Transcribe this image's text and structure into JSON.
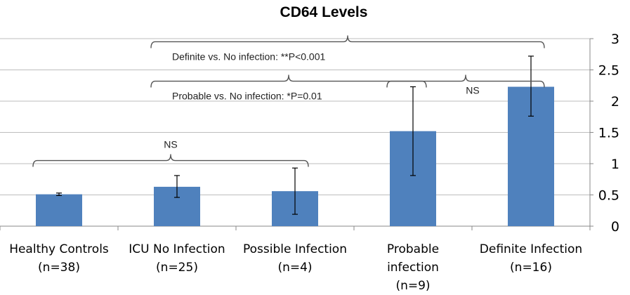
{
  "chart_data": {
    "type": "bar",
    "title": "CD64 Levels",
    "xlabel": "",
    "ylabel": "",
    "ylim": [
      0,
      3
    ],
    "yticks": [
      "0",
      "0.5",
      "1",
      "1.5",
      "2",
      "2.5",
      "3"
    ],
    "y_axis_side": "right",
    "grid": true,
    "categories": [
      [
        "Healthy Controls",
        "(n=38)"
      ],
      [
        "ICU No Infection",
        "(n=25)"
      ],
      [
        "Possible Infection",
        "(n=4)"
      ],
      [
        "Probable",
        "infection",
        "(n=9)"
      ],
      [
        "Definite Infection",
        "(n=16)"
      ]
    ],
    "values": [
      0.51,
      0.63,
      0.56,
      1.52,
      2.23
    ],
    "error": [
      [
        0.49,
        0.53
      ],
      [
        0.46,
        0.81
      ],
      [
        0.19,
        0.93
      ],
      [
        0.81,
        2.23
      ],
      [
        1.76,
        2.72
      ]
    ],
    "color": "#4f81bd",
    "annotations": [
      {
        "text": "Definite vs. No infection: **P<0.001",
        "from": 1,
        "to": 4,
        "level": 2.95
      },
      {
        "text": "Probable vs. No infection: *P=0.01",
        "from": 1,
        "to": 3,
        "level": 2.32
      },
      {
        "text": "NS",
        "from": 3,
        "to": 4,
        "level": 2.32
      },
      {
        "text": "NS",
        "from": 0,
        "to": 2,
        "level": 1.05
      }
    ]
  }
}
